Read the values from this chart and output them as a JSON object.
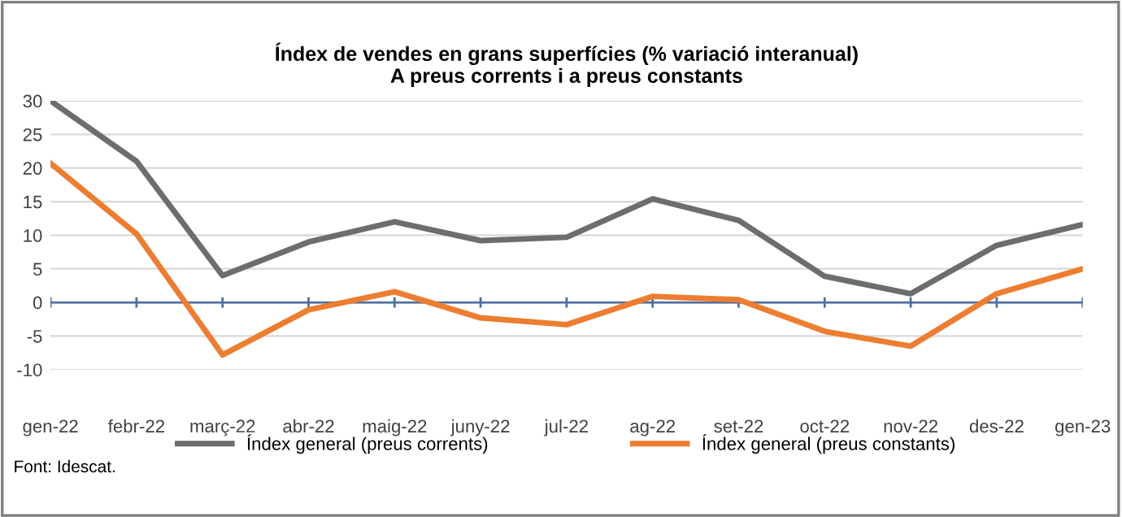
{
  "chart_data": {
    "type": "line",
    "title": "Índex de vendes en grans superfícies (% variació interanual)\nA preus corrents i a preus constants",
    "categories": [
      "gen-22",
      "febr-22",
      "març-22",
      "abr-22",
      "maig-22",
      "juny-22",
      "jul-22",
      "ag-22",
      "set-22",
      "oct-22",
      "nov-22",
      "des-22",
      "gen-23"
    ],
    "series": [
      {
        "name": "Índex general (preus corrents)",
        "color": "#6d6d6d",
        "values": [
          30,
          21,
          4,
          9,
          12,
          9.2,
          9.7,
          15.4,
          12.2,
          3.9,
          1.3,
          8.5,
          11.6
        ]
      },
      {
        "name": "Índex general (preus constants)",
        "color": "#ed7d31",
        "values": [
          20.7,
          10.2,
          -7.8,
          -1.1,
          1.6,
          -2.3,
          -3.3,
          0.9,
          0.4,
          -4.3,
          -6.5,
          1.3,
          5.0
        ]
      }
    ],
    "ylim": [
      -10,
      30
    ],
    "yticks": [
      -10,
      -5,
      0,
      5,
      10,
      15,
      20,
      25,
      30
    ],
    "grid": "y",
    "legend": "bottom",
    "ref_lines": [
      {
        "axis": "y",
        "value": 0,
        "color": "#4f6fa0"
      }
    ],
    "annotations": [
      "Font: Idescat."
    ]
  }
}
